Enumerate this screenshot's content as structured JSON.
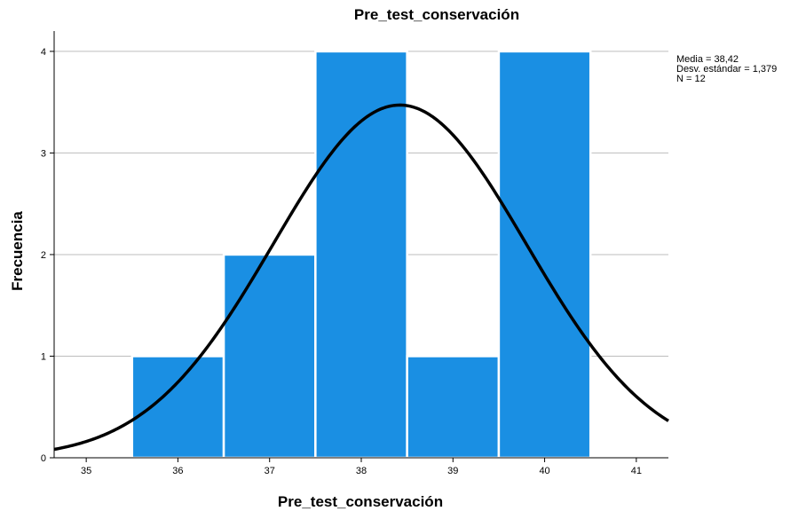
{
  "chart_data": {
    "type": "bar",
    "title": "Pre_test_conservación",
    "xlabel": "Pre_test_conservación",
    "ylabel": "Frecuencia",
    "x_ticks": [
      "35",
      "36",
      "37",
      "38",
      "39",
      "40",
      "41"
    ],
    "y_ticks": [
      "0",
      "1",
      "2",
      "3",
      "4"
    ],
    "xlim": [
      34.65,
      41.35
    ],
    "ylim": [
      0,
      4.2
    ],
    "grid": "horizontal",
    "bins": [
      {
        "center": 36,
        "value": 1
      },
      {
        "center": 37,
        "value": 2
      },
      {
        "center": 38,
        "value": 4
      },
      {
        "center": 39,
        "value": 1
      },
      {
        "center": 40,
        "value": 4
      }
    ],
    "normal_curve": {
      "mean": 38.42,
      "sd": 1.379,
      "n": 12,
      "bin_width": 1
    },
    "stats": [
      "Media = 38,42",
      "Desv. estándar = 1,379",
      "N = 12"
    ],
    "colors": {
      "bar": "#1a8fe3",
      "bar_edge": "#ffffff",
      "curve": "#000000",
      "grid": "#bdbdbd",
      "axis": "#000000"
    }
  }
}
